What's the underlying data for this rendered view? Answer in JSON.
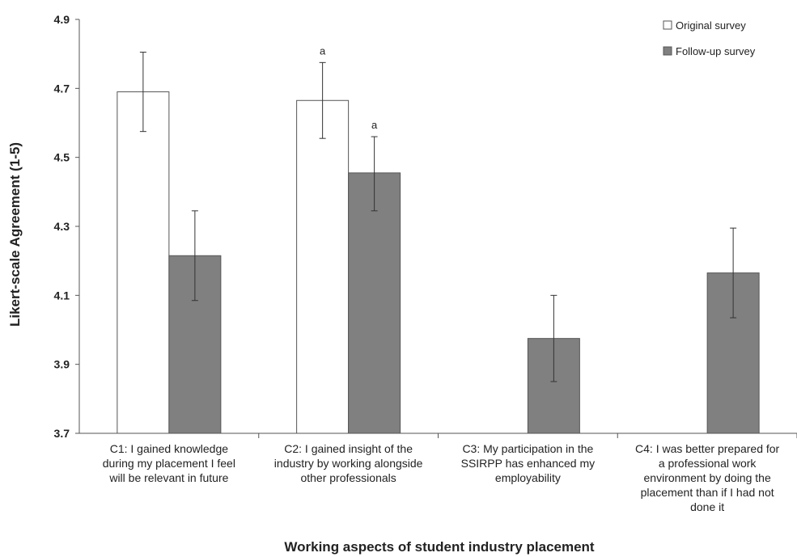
{
  "chart_data": {
    "type": "bar",
    "title": "",
    "xlabel": "Working aspects of student industry placement",
    "ylabel": "Likert-scale Agreement (1-5)",
    "ylim": [
      3.7,
      4.9
    ],
    "yticks": [
      "3.7",
      "3.9",
      "4.1",
      "4.3",
      "4.5",
      "4.7",
      "4.9"
    ],
    "grid": false,
    "legend_position": "top-right",
    "categories": [
      [
        "C1: I gained knowledge",
        "during my placement I feel",
        "will be relevant in future"
      ],
      [
        "C2: I gained insight of the",
        "industry by working alongside",
        "other professionals"
      ],
      [
        "C3: My participation in the",
        "SSIRPP has enhanced my",
        "employability"
      ],
      [
        "C4: I was better prepared for",
        "a professional work",
        "environment by doing the",
        "placement than if I had not",
        "done it"
      ]
    ],
    "series": [
      {
        "name": "Original survey",
        "color": "#ffffff",
        "values": [
          4.69,
          4.665,
          null,
          null
        ],
        "error_low": [
          4.575,
          4.555,
          null,
          null
        ],
        "error_high": [
          4.805,
          4.775,
          null,
          null
        ],
        "annotations": [
          "",
          "a",
          "",
          ""
        ]
      },
      {
        "name": "Follow-up survey",
        "color": "#808080",
        "values": [
          4.215,
          4.455,
          3.975,
          4.165
        ],
        "error_low": [
          4.085,
          4.345,
          3.85,
          4.035
        ],
        "error_high": [
          4.345,
          4.56,
          4.1,
          4.295
        ],
        "annotations": [
          "",
          "a",
          "",
          ""
        ]
      }
    ]
  }
}
